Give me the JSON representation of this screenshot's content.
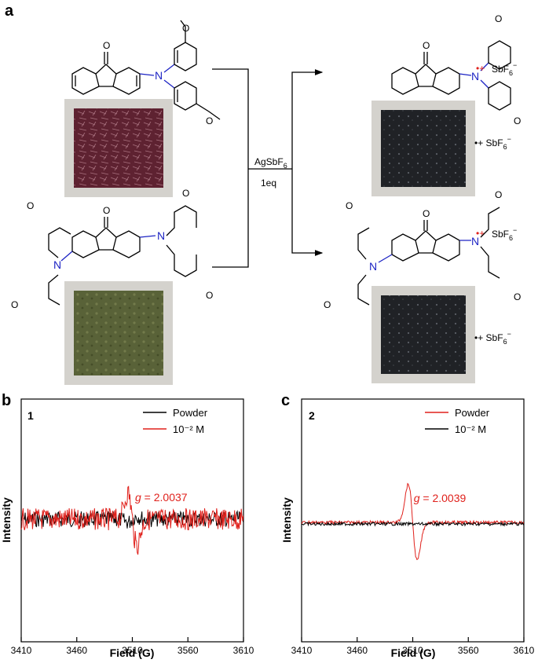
{
  "panel_a": {
    "letter": "a",
    "reagent": "AgSbF",
    "reagent_sub": "6",
    "equivalents": "1eq",
    "oxygen": "O",
    "nitrogen": "N",
    "salt": "SbF",
    "salt_sub": "6",
    "salt_sup": "−",
    "radical": "•+",
    "counter_ion": "•+ SbF",
    "photo_colors": {
      "top_left": "#5e2231",
      "bottom_left": "#596238",
      "right": "#202226",
      "background": "#d4d2cd"
    }
  },
  "chart_data": [
    {
      "panel": "b",
      "type": "line",
      "compound_label": "1",
      "xlabel": "Field (G)",
      "ylabel": "Intensity",
      "xlim": [
        3410,
        3610
      ],
      "xticks": [
        3410,
        3460,
        3510,
        3560,
        3610
      ],
      "legend_position": "top-right",
      "annotation_prefix": "g",
      "annotation_value": " = 2.0037",
      "series": [
        {
          "name": "Powder",
          "color": "#000000"
        },
        {
          "name": "10⁻² M",
          "color": "#e0211c"
        }
      ]
    },
    {
      "panel": "c",
      "type": "line",
      "compound_label": "2",
      "xlabel": "Field (G)",
      "ylabel": "Intensity",
      "xlim": [
        3410,
        3610
      ],
      "xticks": [
        3410,
        3460,
        3510,
        3560,
        3610
      ],
      "legend_position": "top-right",
      "annotation_prefix": "g",
      "annotation_value": " = 2.0039",
      "series": [
        {
          "name": "Powder",
          "color": "#e0211c"
        },
        {
          "name": "10⁻² M",
          "color": "#000000"
        }
      ]
    }
  ]
}
